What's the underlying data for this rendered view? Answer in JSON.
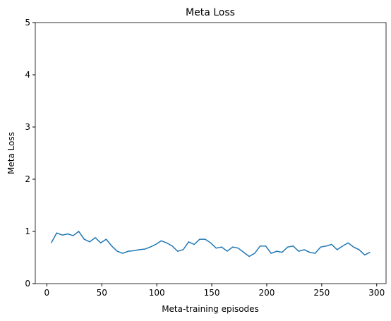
{
  "chart_data": {
    "type": "line",
    "title": "Meta Loss",
    "x_label": "Meta-training episodes",
    "y_label": "Meta Loss",
    "x": [
      4,
      9,
      14,
      19,
      24,
      29,
      34,
      39,
      44,
      49,
      54,
      59,
      64,
      69,
      74,
      79,
      84,
      89,
      94,
      99,
      104,
      109,
      114,
      119,
      124,
      129,
      134,
      139,
      144,
      149,
      154,
      159,
      164,
      169,
      174,
      179,
      184,
      189,
      194,
      199,
      204,
      209,
      214,
      219,
      224,
      229,
      234,
      239,
      244,
      249,
      254,
      259,
      264,
      269,
      274,
      279,
      284,
      289,
      294
    ],
    "series": [
      {
        "name": "Meta Loss",
        "color": "#1f77b4",
        "values": [
          0.78,
          0.97,
          0.93,
          0.95,
          0.92,
          1.0,
          0.85,
          0.8,
          0.88,
          0.78,
          0.85,
          0.72,
          0.62,
          0.58,
          0.62,
          0.63,
          0.65,
          0.66,
          0.7,
          0.75,
          0.82,
          0.78,
          0.72,
          0.62,
          0.65,
          0.8,
          0.75,
          0.85,
          0.85,
          0.78,
          0.68,
          0.7,
          0.62,
          0.7,
          0.68,
          0.6,
          0.52,
          0.58,
          0.72,
          0.72,
          0.58,
          0.62,
          0.6,
          0.7,
          0.72,
          0.62,
          0.65,
          0.6,
          0.58,
          0.7,
          0.72,
          0.75,
          0.65,
          0.72,
          0.78,
          0.7,
          0.65,
          0.55,
          0.6
        ]
      }
    ],
    "xlim": [
      -10.5,
      308.5
    ],
    "ylim": [
      0,
      5
    ],
    "xticks": [
      0,
      50,
      100,
      150,
      200,
      250,
      300
    ],
    "yticks": [
      0,
      1,
      2,
      3,
      4,
      5
    ]
  }
}
